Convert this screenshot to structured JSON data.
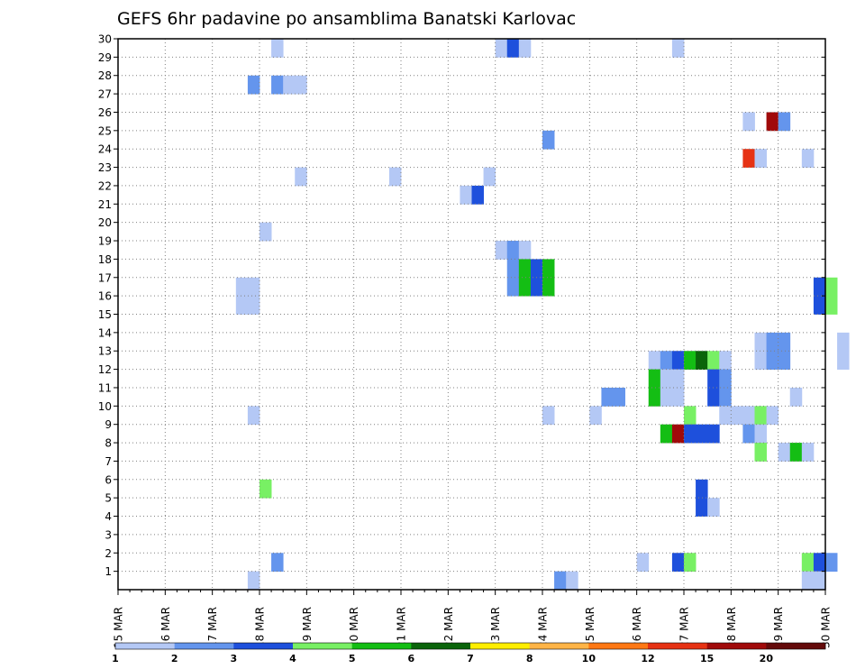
{
  "chart_data": {
    "type": "heatmap",
    "title": "GEFS 6hr padavine po ansamblima Banatski Karlovac",
    "x_ticks": [
      "15 MAR",
      "16 MAR",
      "17 MAR",
      "18 MAR",
      "19 MAR",
      "20 MAR",
      "21 MAR",
      "22 MAR",
      "23 MAR",
      "24 MAR",
      "25 MAR",
      "26 MAR",
      "27 MAR",
      "28 MAR",
      "29 MAR",
      "30 MAR"
    ],
    "y_ticks": [
      "1",
      "2",
      "3",
      "4",
      "5",
      "6",
      "7",
      "8",
      "9",
      "10",
      "11",
      "12",
      "13",
      "14",
      "15",
      "16",
      "17",
      "18",
      "19",
      "20",
      "21",
      "22",
      "23",
      "24",
      "25",
      "26",
      "27",
      "28",
      "29",
      "30"
    ],
    "xlim": [
      "15 MAR",
      "30 MAR"
    ],
    "ylim": [
      0,
      30
    ],
    "grid": true,
    "step_hours": 6,
    "colorbar": {
      "labels": [
        "1",
        "2",
        "3",
        "4",
        "5",
        "6",
        "7",
        "8",
        "10",
        "12",
        "15",
        "20"
      ],
      "colors": [
        "#b4c8f5",
        "#6495ed",
        "#1e50dc",
        "#78f064",
        "#14be14",
        "#0a640a",
        "#ffee00",
        "#ffb446",
        "#ff7814",
        "#e63214",
        "#a00a0a",
        "#640a0a"
      ]
    },
    "cells": [
      {
        "m": 30,
        "t": "18 MAR 06",
        "c": 1
      },
      {
        "m": 30,
        "t": "23 MAR 00",
        "c": 1
      },
      {
        "m": 30,
        "t": "23 MAR 06",
        "c": 3
      },
      {
        "m": 30,
        "t": "23 MAR 12",
        "c": 1
      },
      {
        "m": 30,
        "t": "26 MAR 18",
        "c": 1
      },
      {
        "m": 28,
        "t": "17 MAR 18",
        "c": 2
      },
      {
        "m": 28,
        "t": "18 MAR 06",
        "c": 2
      },
      {
        "m": 28,
        "t": "18 MAR 12",
        "c": 1
      },
      {
        "m": 28,
        "t": "18 MAR 18",
        "c": 1
      },
      {
        "m": 26,
        "t": "28 MAR 06",
        "c": 1
      },
      {
        "m": 26,
        "t": "28 MAR 18",
        "c": 11
      },
      {
        "m": 26,
        "t": "29 MAR 00",
        "c": 2
      },
      {
        "m": 25,
        "t": "24 MAR 00",
        "c": 2
      },
      {
        "m": 24,
        "t": "28 MAR 06",
        "c": 10
      },
      {
        "m": 24,
        "t": "28 MAR 12",
        "c": 1
      },
      {
        "m": 24,
        "t": "29 MAR 12",
        "c": 1
      },
      {
        "m": 23,
        "t": "18 MAR 18",
        "c": 1
      },
      {
        "m": 23,
        "t": "20 MAR 18",
        "c": 1
      },
      {
        "m": 23,
        "t": "22 MAR 18",
        "c": 1
      },
      {
        "m": 22,
        "t": "22 MAR 06",
        "c": 1
      },
      {
        "m": 22,
        "t": "22 MAR 12",
        "c": 3
      },
      {
        "m": 20,
        "t": "18 MAR 00",
        "c": 1
      },
      {
        "m": 19,
        "t": "23 MAR 00",
        "c": 1
      },
      {
        "m": 19,
        "t": "23 MAR 06",
        "c": 2
      },
      {
        "m": 19,
        "t": "23 MAR 12",
        "c": 1
      },
      {
        "m": 18,
        "t": "23 MAR 06",
        "c": 2
      },
      {
        "m": 18,
        "t": "23 MAR 12",
        "c": 5
      },
      {
        "m": 18,
        "t": "23 MAR 18",
        "c": 3
      },
      {
        "m": 18,
        "t": "24 MAR 00",
        "c": 5
      },
      {
        "m": 17,
        "t": "23 MAR 06",
        "c": 2
      },
      {
        "m": 17,
        "t": "23 MAR 12",
        "c": 5
      },
      {
        "m": 17,
        "t": "23 MAR 18",
        "c": 3
      },
      {
        "m": 17,
        "t": "24 MAR 00",
        "c": 5
      },
      {
        "m": 17,
        "t": "17 MAR 12",
        "c": 1
      },
      {
        "m": 17,
        "t": "17 MAR 18",
        "c": 1
      },
      {
        "m": 17,
        "t": "29 MAR 18",
        "c": 3
      },
      {
        "m": 17,
        "t": "30 MAR 00",
        "c": 4
      },
      {
        "m": 16,
        "t": "17 MAR 12",
        "c": 1
      },
      {
        "m": 16,
        "t": "17 MAR 18",
        "c": 1
      },
      {
        "m": 16,
        "t": "29 MAR 18",
        "c": 3
      },
      {
        "m": 16,
        "t": "30 MAR 00",
        "c": 4
      },
      {
        "m": 14,
        "t": "28 MAR 12",
        "c": 1
      },
      {
        "m": 14,
        "t": "28 MAR 18",
        "c": 2
      },
      {
        "m": 14,
        "t": "29 MAR 00",
        "c": 2
      },
      {
        "m": 14,
        "t": "30 MAR 06",
        "c": 1
      },
      {
        "m": 13,
        "t": "28 MAR 12",
        "c": 1
      },
      {
        "m": 13,
        "t": "28 MAR 18",
        "c": 2
      },
      {
        "m": 13,
        "t": "29 MAR 00",
        "c": 2
      },
      {
        "m": 13,
        "t": "30 MAR 06",
        "c": 1
      },
      {
        "m": 13,
        "t": "26 MAR 06",
        "c": 1
      },
      {
        "m": 13,
        "t": "26 MAR 12",
        "c": 2
      },
      {
        "m": 13,
        "t": "26 MAR 18",
        "c": 3
      },
      {
        "m": 13,
        "t": "27 MAR 00",
        "c": 5
      },
      {
        "m": 13,
        "t": "27 MAR 06",
        "c": 6
      },
      {
        "m": 13,
        "t": "27 MAR 12",
        "c": 4
      },
      {
        "m": 13,
        "t": "27 MAR 18",
        "c": 1
      },
      {
        "m": 12,
        "t": "26 MAR 06",
        "c": 5
      },
      {
        "m": 12,
        "t": "26 MAR 12",
        "c": 1
      },
      {
        "m": 12,
        "t": "26 MAR 18",
        "c": 1
      },
      {
        "m": 12,
        "t": "27 MAR 12",
        "c": 3
      },
      {
        "m": 12,
        "t": "27 MAR 18",
        "c": 2
      },
      {
        "m": 11,
        "t": "25 MAR 06",
        "c": 2
      },
      {
        "m": 11,
        "t": "25 MAR 12",
        "c": 2
      },
      {
        "m": 11,
        "t": "26 MAR 06",
        "c": 5
      },
      {
        "m": 11,
        "t": "26 MAR 12",
        "c": 1
      },
      {
        "m": 11,
        "t": "26 MAR 18",
        "c": 1
      },
      {
        "m": 11,
        "t": "27 MAR 12",
        "c": 3
      },
      {
        "m": 11,
        "t": "27 MAR 18",
        "c": 2
      },
      {
        "m": 11,
        "t": "29 MAR 06",
        "c": 1
      },
      {
        "m": 10,
        "t": "17 MAR 18",
        "c": 1
      },
      {
        "m": 10,
        "t": "24 MAR 00",
        "c": 1
      },
      {
        "m": 10,
        "t": "25 MAR 00",
        "c": 1
      },
      {
        "m": 10,
        "t": "27 MAR 00",
        "c": 4
      },
      {
        "m": 10,
        "t": "27 MAR 18",
        "c": 1
      },
      {
        "m": 10,
        "t": "28 MAR 00",
        "c": 1
      },
      {
        "m": 10,
        "t": "28 MAR 06",
        "c": 1
      },
      {
        "m": 10,
        "t": "28 MAR 12",
        "c": 4
      },
      {
        "m": 10,
        "t": "28 MAR 18",
        "c": 1
      },
      {
        "m": 9,
        "t": "26 MAR 12",
        "c": 5
      },
      {
        "m": 9,
        "t": "26 MAR 18",
        "c": 11
      },
      {
        "m": 9,
        "t": "27 MAR 00",
        "c": 3
      },
      {
        "m": 9,
        "t": "27 MAR 06",
        "c": 3
      },
      {
        "m": 9,
        "t": "27 MAR 12",
        "c": 3
      },
      {
        "m": 9,
        "t": "28 MAR 06",
        "c": 2
      },
      {
        "m": 9,
        "t": "28 MAR 12",
        "c": 1
      },
      {
        "m": 8,
        "t": "28 MAR 12",
        "c": 4
      },
      {
        "m": 8,
        "t": "29 MAR 00",
        "c": 1
      },
      {
        "m": 8,
        "t": "29 MAR 06",
        "c": 5
      },
      {
        "m": 8,
        "t": "29 MAR 12",
        "c": 1
      },
      {
        "m": 6,
        "t": "18 MAR 00",
        "c": 4
      },
      {
        "m": 6,
        "t": "27 MAR 06",
        "c": 3
      },
      {
        "m": 5,
        "t": "27 MAR 06",
        "c": 3
      },
      {
        "m": 5,
        "t": "27 MAR 12",
        "c": 1
      },
      {
        "m": 2,
        "t": "18 MAR 06",
        "c": 2
      },
      {
        "m": 2,
        "t": "26 MAR 00",
        "c": 1
      },
      {
        "m": 2,
        "t": "26 MAR 18",
        "c": 3
      },
      {
        "m": 2,
        "t": "27 MAR 00",
        "c": 4
      },
      {
        "m": 2,
        "t": "29 MAR 12",
        "c": 4
      },
      {
        "m": 2,
        "t": "29 MAR 18",
        "c": 3
      },
      {
        "m": 2,
        "t": "30 MAR 00",
        "c": 2
      },
      {
        "m": 1,
        "t": "17 MAR 18",
        "c": 1
      },
      {
        "m": 1,
        "t": "24 MAR 06",
        "c": 2
      },
      {
        "m": 1,
        "t": "24 MAR 12",
        "c": 1
      },
      {
        "m": 1,
        "t": "29 MAR 12",
        "c": 1
      },
      {
        "m": 1,
        "t": "29 MAR 18",
        "c": 1
      }
    ]
  }
}
